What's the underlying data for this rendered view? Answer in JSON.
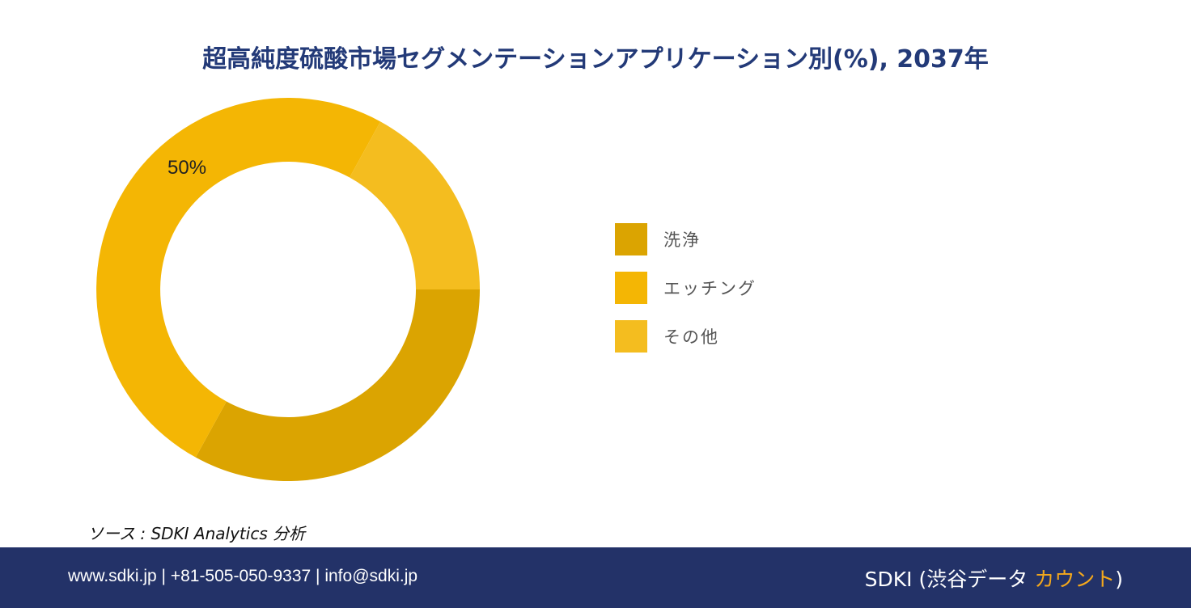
{
  "chart_data": {
    "type": "pie",
    "title": "超高純度硫酸市場セグメンテーションアプリケーション別(%), 2037年",
    "categories": [
      "洗浄",
      "エッチング",
      "その他"
    ],
    "values": [
      33,
      50,
      17
    ],
    "colors": [
      "#dba401",
      "#f4b604",
      "#f4bd1f"
    ],
    "data_labels": [
      "",
      "50%",
      ""
    ],
    "donut": true,
    "legend_position": "right"
  },
  "source_text": "ソース : SDKI Analytics 分析",
  "footer": {
    "contact": "www.sdki.jp | +81-505-050-9337 | info@sdki.jp",
    "brand_prefix": "SDKI (渋谷データ ",
    "brand_accent": "カウント",
    "brand_suffix": ")"
  }
}
